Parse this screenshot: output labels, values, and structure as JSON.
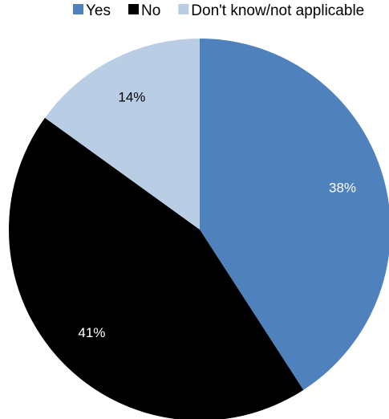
{
  "chart_data": {
    "type": "pie",
    "legend_position": "top",
    "start_angle_deg": 0,
    "direction": "clockwise",
    "slices": [
      {
        "label": "Yes",
        "value": 38,
        "display": "38%",
        "color": "#4F81BD",
        "label_color": "#ffffff"
      },
      {
        "label": "No",
        "value": 41,
        "display": "41%",
        "color": "#000000",
        "label_color": "#ffffff"
      },
      {
        "label": "Don't know/not applicable",
        "value": 14,
        "display": "14%",
        "color": "#B9CDE5",
        "label_color": "#000000"
      }
    ]
  }
}
